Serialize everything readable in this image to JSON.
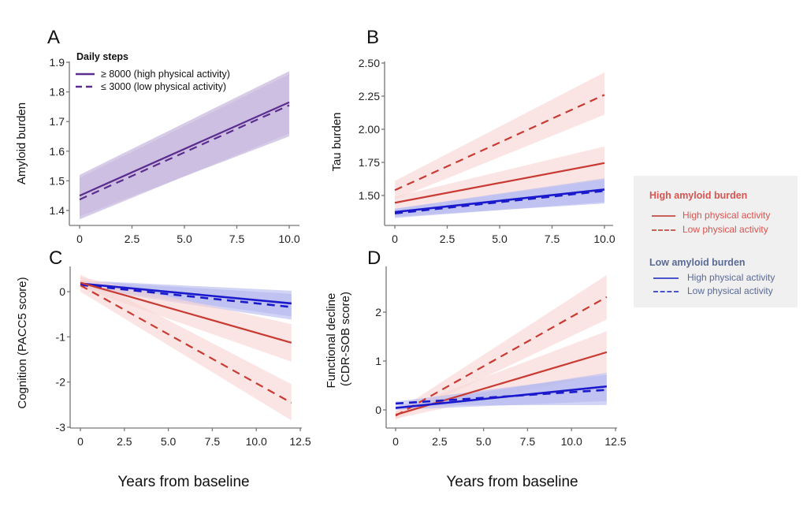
{
  "figure": {
    "x_title": "Years from baseline",
    "colors": {
      "purple": "#5b2d8e",
      "purple_band": "#c9bbe0",
      "red": "#c93a32",
      "red_band": "#f8d4d2",
      "blue": "#1a1acc",
      "blue_band": "#b4b8ef",
      "legend_red_text": "#d9534f",
      "legend_blue_text": "#5a6a96"
    },
    "legend_A": {
      "title": "Daily steps",
      "items": [
        {
          "label": "≥ 8000 (high physical activity)",
          "style": "solid"
        },
        {
          "label": "≤ 3000 (low physical activity)",
          "style": "dashed"
        }
      ]
    },
    "legend_shared": {
      "high_title": "High amyloid burden",
      "high_items": [
        {
          "label": "High physical activity",
          "style": "solid"
        },
        {
          "label": "Low physical activity",
          "style": "dashed"
        }
      ],
      "low_title": "Low amyloid burden",
      "low_items": [
        {
          "label": "High physical activity",
          "style": "solid"
        },
        {
          "label": "Low physical activity",
          "style": "dashed"
        }
      ]
    }
  },
  "chart_data": [
    {
      "panel": "A",
      "type": "line",
      "ylabel": "Amyloid burden",
      "xlabel": "",
      "xlim": [
        0,
        10
      ],
      "ylim": [
        1.35,
        1.9
      ],
      "xticks": [
        "0",
        "2.5",
        "5.0",
        "7.5",
        "10.0"
      ],
      "xtick_values": [
        0,
        2.5,
        5,
        7.5,
        10
      ],
      "yticks": [
        "1.4",
        "1.5",
        "1.6",
        "1.7",
        "1.8",
        "1.9"
      ],
      "ytick_values": [
        1.4,
        1.5,
        1.6,
        1.7,
        1.8,
        1.9
      ],
      "series": [
        {
          "name": "≥ 8000 (high physical activity)",
          "color": "purple",
          "style": "solid",
          "x": [
            0,
            10
          ],
          "y": [
            1.45,
            1.765
          ],
          "ci_low": [
            1.38,
            1.65
          ],
          "ci_high": [
            1.52,
            1.87
          ]
        },
        {
          "name": "≤ 3000 (low physical activity)",
          "color": "purple",
          "style": "dashed",
          "x": [
            0,
            10
          ],
          "y": [
            1.437,
            1.755
          ],
          "ci_low": [
            1.37,
            1.66
          ],
          "ci_high": [
            1.51,
            1.86
          ]
        }
      ]
    },
    {
      "panel": "B",
      "type": "line",
      "ylabel": "Tau burden",
      "xlabel": "",
      "xlim": [
        0,
        10
      ],
      "ylim": [
        1.28,
        2.5
      ],
      "xticks": [
        "0",
        "2.5",
        "5.0",
        "7.5",
        "10.0"
      ],
      "xtick_values": [
        0,
        2.5,
        5,
        7.5,
        10
      ],
      "yticks": [
        "1.50",
        "1.75",
        "2.00",
        "2.25",
        "2.50"
      ],
      "ytick_values": [
        1.5,
        1.75,
        2.0,
        2.25,
        2.5
      ],
      "series": [
        {
          "name": "High amyloid, low physical activity",
          "color": "red",
          "style": "dashed",
          "x": [
            0,
            10
          ],
          "y": [
            1.54,
            2.26
          ],
          "ci_low": [
            1.47,
            2.11
          ],
          "ci_high": [
            1.61,
            2.43
          ]
        },
        {
          "name": "High amyloid, high physical activity",
          "color": "red",
          "style": "solid",
          "x": [
            0,
            10
          ],
          "y": [
            1.445,
            1.745
          ],
          "ci_low": [
            1.4,
            1.62
          ],
          "ci_high": [
            1.49,
            1.87
          ]
        },
        {
          "name": "Low amyloid, high physical activity",
          "color": "blue",
          "style": "solid",
          "x": [
            0,
            10
          ],
          "y": [
            1.375,
            1.545
          ],
          "ci_low": [
            1.34,
            1.44
          ],
          "ci_high": [
            1.4,
            1.63
          ]
        },
        {
          "name": "Low amyloid, low physical activity",
          "color": "blue",
          "style": "dashed",
          "x": [
            0,
            10
          ],
          "y": [
            1.365,
            1.535
          ],
          "ci_low": [
            1.33,
            1.45
          ],
          "ci_high": [
            1.4,
            1.62
          ]
        }
      ]
    },
    {
      "panel": "C",
      "type": "line",
      "ylabel": "Cognition (PACC5 score)",
      "xlabel": "Years from baseline",
      "xlim": [
        -0.3,
        12.5
      ],
      "ylim": [
        -3,
        0.5
      ],
      "xticks": [
        "0",
        "2.5",
        "5.0",
        "7.5",
        "10.0",
        "12.5"
      ],
      "xtick_values": [
        0,
        2.5,
        5,
        7.5,
        10,
        12.5
      ],
      "yticks": [
        "-3",
        "-2",
        "-1",
        "0"
      ],
      "ytick_values": [
        -3,
        -2,
        -1,
        0
      ],
      "series": [
        {
          "name": "Low amyloid, high physical activity",
          "color": "blue",
          "style": "solid",
          "x": [
            0,
            12
          ],
          "y": [
            0.18,
            -0.26
          ],
          "ci_low": [
            0.1,
            -0.55
          ],
          "ci_high": [
            0.25,
            0.02
          ]
        },
        {
          "name": "Low amyloid, low physical activity",
          "color": "blue",
          "style": "dashed",
          "x": [
            0,
            12
          ],
          "y": [
            0.15,
            -0.34
          ],
          "ci_low": [
            0.08,
            -0.62
          ],
          "ci_high": [
            0.24,
            -0.05
          ]
        },
        {
          "name": "High amyloid, high physical activity",
          "color": "red",
          "style": "solid",
          "x": [
            0,
            12
          ],
          "y": [
            0.2,
            -1.13
          ],
          "ci_low": [
            0.08,
            -1.55
          ],
          "ci_high": [
            0.33,
            -0.72
          ]
        },
        {
          "name": "High amyloid, low physical activity",
          "color": "red",
          "style": "dashed",
          "x": [
            0,
            12
          ],
          "y": [
            0.14,
            -2.46
          ],
          "ci_low": [
            0.0,
            -2.85
          ],
          "ci_high": [
            0.38,
            -2.05
          ]
        }
      ]
    },
    {
      "panel": "D",
      "type": "line",
      "ylabel": "Functional decline (CDR-SOB score)",
      "xlabel": "Years from baseline",
      "xlim": [
        -0.3,
        12.5
      ],
      "ylim": [
        -0.38,
        2.9
      ],
      "xticks": [
        "0",
        "2.5",
        "5.0",
        "7.5",
        "10.0",
        "12.5"
      ],
      "xtick_values": [
        0,
        2.5,
        5,
        7.5,
        10,
        12.5
      ],
      "yticks": [
        "0",
        "1",
        "2"
      ],
      "ytick_values": [
        0,
        1,
        2
      ],
      "series": [
        {
          "name": "High amyloid, low physical activity",
          "color": "red",
          "style": "dashed",
          "x": [
            0,
            12
          ],
          "y": [
            -0.12,
            2.31
          ],
          "ci_low": [
            -0.2,
            1.85
          ],
          "ci_high": [
            -0.04,
            2.76
          ]
        },
        {
          "name": "High amyloid, high physical activity",
          "color": "red",
          "style": "solid",
          "x": [
            0,
            12
          ],
          "y": [
            -0.1,
            1.18
          ],
          "ci_low": [
            -0.18,
            0.75
          ],
          "ci_high": [
            -0.02,
            1.61
          ]
        },
        {
          "name": "Low amyloid, high physical activity",
          "color": "blue",
          "style": "solid",
          "x": [
            0,
            12
          ],
          "y": [
            0.04,
            0.48
          ],
          "ci_low": [
            0.0,
            0.18
          ],
          "ci_high": [
            0.08,
            0.76
          ]
        },
        {
          "name": "Low amyloid, low physical activity",
          "color": "blue",
          "style": "dashed",
          "x": [
            0,
            12
          ],
          "y": [
            0.13,
            0.41
          ],
          "ci_low": [
            0.09,
            0.1
          ],
          "ci_high": [
            0.17,
            0.72
          ]
        }
      ]
    }
  ]
}
